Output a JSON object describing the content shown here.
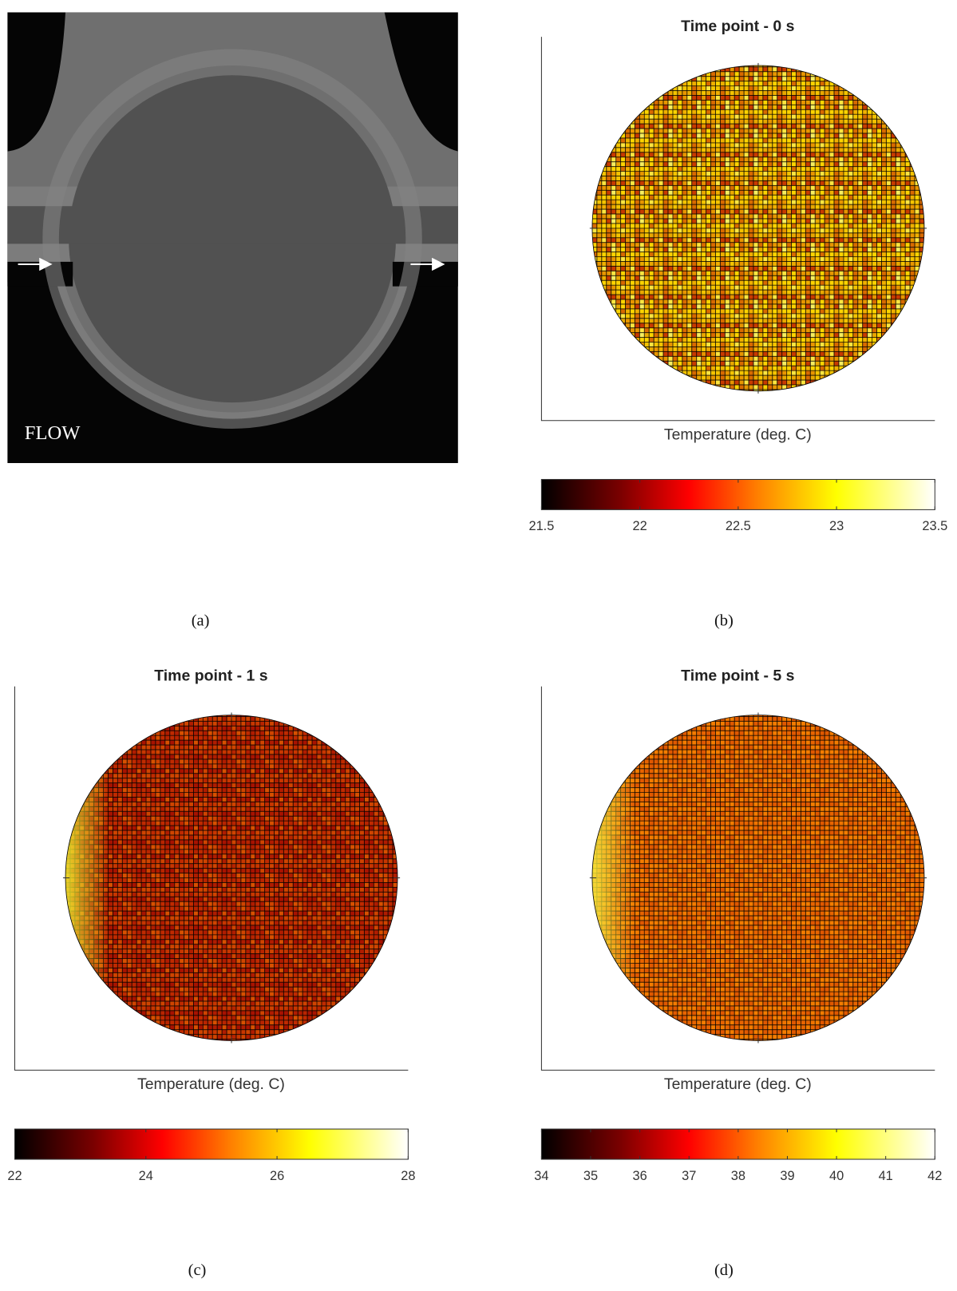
{
  "image_panel": {
    "label": "FLOW",
    "panel_label": "(a)"
  },
  "chart_data": [
    {
      "type": "heatmap",
      "title": "Time point - 0 s",
      "xlabel": "Temperature (deg. C)",
      "panel_label": "(b)",
      "colormap": "hot",
      "clim": [
        21.5,
        23.5
      ],
      "cticks": [
        21.5,
        22,
        22.5,
        23,
        23.5
      ]
    },
    {
      "type": "heatmap",
      "title": "Time point - 1 s",
      "xlabel": "Temperature (deg. C)",
      "panel_label": "(c)",
      "colormap": "hot",
      "clim": [
        22,
        28
      ],
      "cticks": [
        22,
        24,
        26,
        28
      ]
    },
    {
      "type": "heatmap",
      "title": "Time point - 5 s",
      "xlabel": "Temperature (deg. C)",
      "panel_label": "(d)",
      "colormap": "hot",
      "clim": [
        34,
        42
      ],
      "cticks": [
        34,
        35,
        36,
        37,
        38,
        39,
        40,
        41,
        42
      ]
    }
  ]
}
